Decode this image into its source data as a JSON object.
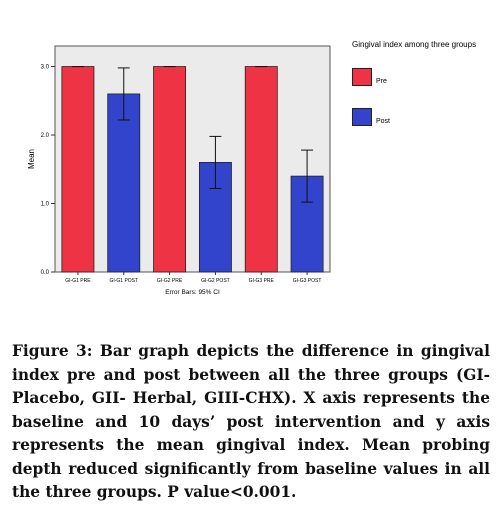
{
  "chart_data": {
    "type": "bar",
    "categories": [
      "GI-G1 PRE",
      "GI-G1 POST",
      "GI-G2 PRE",
      "GI-G2 POST",
      "GI-G3 PRE",
      "GI-G3 POST"
    ],
    "values": [
      3.0,
      2.6,
      3.0,
      1.6,
      3.0,
      1.4
    ],
    "error_bars": [
      {
        "low": 3.0,
        "high": 3.0
      },
      {
        "low": 2.22,
        "high": 2.98
      },
      {
        "low": 3.0,
        "high": 3.0
      },
      {
        "low": 1.22,
        "high": 1.98
      },
      {
        "low": 3.0,
        "high": 3.0
      },
      {
        "low": 1.02,
        "high": 1.78
      }
    ],
    "bar_groups": [
      "Pre",
      "Post",
      "Pre",
      "Post",
      "Pre",
      "Post"
    ],
    "yticks": [
      "0.0",
      "1.0",
      "2.0",
      "3.0"
    ],
    "ylim": [
      0,
      3.3
    ],
    "ylabel": "Mean",
    "xlabel": "Error Bars: 95% CI",
    "grid": false,
    "legend": {
      "title": "Gingival index among three groups",
      "placement": "right",
      "entries": [
        {
          "label": "Pre",
          "color": "#ee3344"
        },
        {
          "label": "Post",
          "color": "#3344cc"
        }
      ]
    },
    "colors": {
      "Pre": "#ee3344",
      "Post": "#3344cc",
      "plot_background": "#ebebeb"
    }
  },
  "caption": "Figure 3: Bar graph depicts the difference in gingival index pre and post between all the three groups (GI-Placebo, GII- Herbal, GIII-CHX). X axis represents the baseline and 10 days’ post intervention and y axis represents the mean gingival index. Mean probing depth reduced significantly from baseline values in all the three groups. P value<0.001."
}
